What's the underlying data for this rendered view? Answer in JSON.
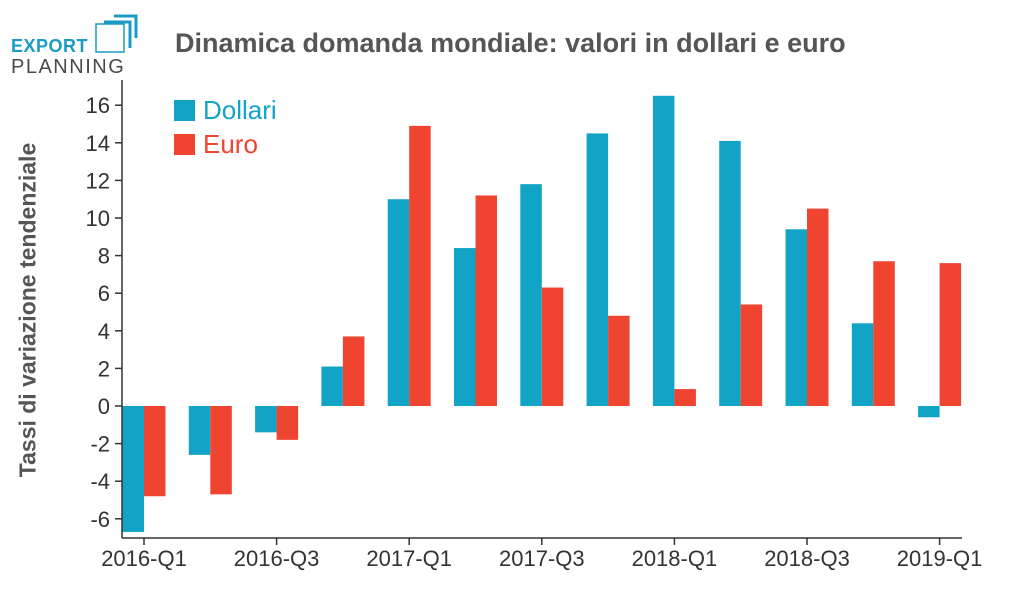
{
  "logo": {
    "line1": "EXPORT",
    "line2": "PLANNING"
  },
  "chart_data": {
    "type": "bar",
    "title": "Dinamica domanda mondiale: valori in dollari e euro",
    "xlabel": "",
    "ylabel": "Tassi di variazione tendenziale",
    "categories": [
      "2016-Q1",
      "2016-Q2",
      "2016-Q3",
      "2016-Q4",
      "2017-Q1",
      "2017-Q2",
      "2017-Q3",
      "2017-Q4",
      "2018-Q1",
      "2018-Q2",
      "2018-Q3",
      "2018-Q4",
      "2019-Q1"
    ],
    "x_tick_labels": [
      "2016-Q1",
      "2016-Q3",
      "2017-Q1",
      "2017-Q3",
      "2018-Q1",
      "2018-Q3",
      "2019-Q1"
    ],
    "ylim": [
      -7,
      17
    ],
    "y_ticks": [
      -6,
      -4,
      -2,
      0,
      2,
      4,
      6,
      8,
      10,
      12,
      14,
      16
    ],
    "legend_position": "top-left",
    "grid": false,
    "series": [
      {
        "name": "Dollari",
        "color": "#12a4c6",
        "values": [
          -6.7,
          -2.6,
          -1.4,
          2.1,
          11.0,
          8.4,
          11.8,
          14.5,
          16.5,
          14.1,
          9.4,
          4.4,
          -0.6
        ]
      },
      {
        "name": "Euro",
        "color": "#ee4430",
        "values": [
          -4.8,
          -4.7,
          -1.8,
          3.7,
          14.9,
          11.2,
          6.3,
          4.8,
          0.9,
          5.4,
          10.5,
          7.7,
          7.6
        ]
      }
    ]
  }
}
